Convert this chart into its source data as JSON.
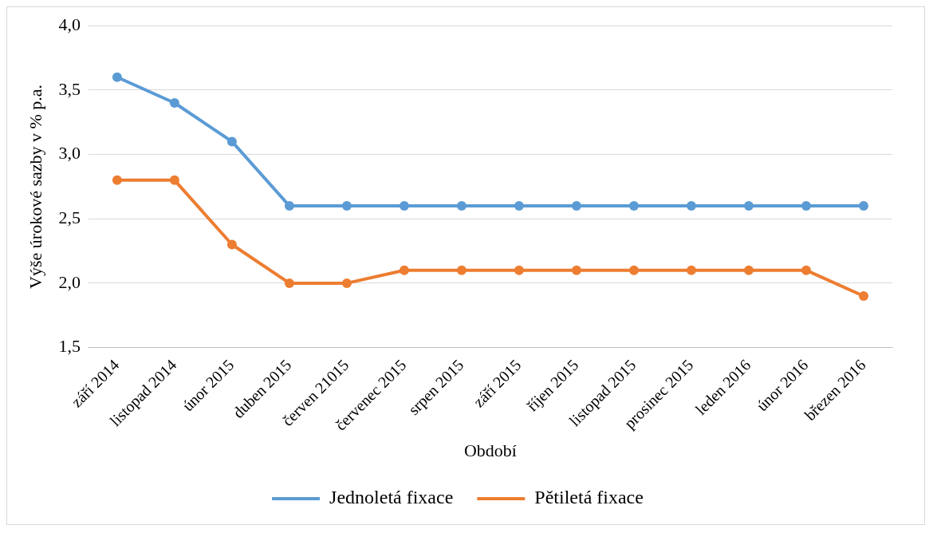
{
  "chart_data": {
    "type": "line",
    "xlabel": "Období",
    "ylabel": "Výše úrokové sazby v % p.a.",
    "categories": [
      "září 2014",
      "listopad 2014",
      "únor 2015",
      "duben 2015",
      "červen 21015",
      "červenec 2015",
      "srpen 2015",
      "září 2015",
      "říjen 2015",
      "listopad 2015",
      "prosinec 2015",
      "leden 2016",
      "únor 2016",
      "březen 2016"
    ],
    "series": [
      {
        "name": "Jednoletá fixace",
        "color": "#5b9bd5",
        "values": [
          3.6,
          3.4,
          3.1,
          2.6,
          2.6,
          2.6,
          2.6,
          2.6,
          2.6,
          2.6,
          2.6,
          2.6,
          2.6,
          2.6
        ]
      },
      {
        "name": "Pětiletá fixace",
        "color": "#ed7d31",
        "values": [
          2.8,
          2.8,
          2.3,
          2.0,
          2.0,
          2.1,
          2.1,
          2.1,
          2.1,
          2.1,
          2.1,
          2.1,
          2.1,
          1.9
        ]
      }
    ],
    "ylim": [
      1.5,
      4.0
    ],
    "yticks": [
      {
        "value": 1.5,
        "label": "1,5"
      },
      {
        "value": 2.0,
        "label": "2,0"
      },
      {
        "value": 2.5,
        "label": "2,5"
      },
      {
        "value": 3.0,
        "label": "3,0"
      },
      {
        "value": 3.5,
        "label": "3,5"
      },
      {
        "value": 4.0,
        "label": "4,0"
      }
    ],
    "grid": "y",
    "legend": "bottom",
    "marker": "circle",
    "line_style": "solid"
  }
}
